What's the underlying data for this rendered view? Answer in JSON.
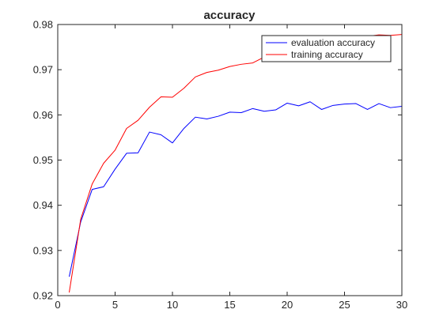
{
  "chart_data": {
    "type": "line",
    "title": "accuracy",
    "xlabel": "",
    "ylabel": "",
    "xlim": [
      0,
      30
    ],
    "ylim": [
      0.92,
      0.98
    ],
    "xticks": [
      0,
      5,
      10,
      15,
      20,
      25,
      30
    ],
    "xtick_labels": [
      "0",
      "5",
      "10",
      "15",
      "20",
      "25",
      "30"
    ],
    "yticks": [
      0.92,
      0.93,
      0.94,
      0.95,
      0.96,
      0.97,
      0.98
    ],
    "ytick_labels": [
      "0.92",
      "0.93",
      "0.94",
      "0.95",
      "0.96",
      "0.97",
      "0.98"
    ],
    "grid": false,
    "legend_position": "top-right",
    "x": [
      1,
      2,
      3,
      4,
      5,
      6,
      7,
      8,
      9,
      10,
      11,
      12,
      13,
      14,
      15,
      16,
      17,
      18,
      19,
      20,
      21,
      22,
      23,
      24,
      25,
      26,
      27,
      28,
      29,
      30
    ],
    "series": [
      {
        "name": "evaluation accuracy",
        "color": "#0000ff",
        "values": [
          0.9242,
          0.9363,
          0.9435,
          0.9441,
          0.948,
          0.9515,
          0.9516,
          0.9562,
          0.9556,
          0.9538,
          0.957,
          0.9595,
          0.9591,
          0.9597,
          0.9606,
          0.9605,
          0.9614,
          0.9608,
          0.9611,
          0.9626,
          0.962,
          0.9629,
          0.9612,
          0.9621,
          0.9624,
          0.9625,
          0.9612,
          0.9625,
          0.9616,
          0.9619
        ]
      },
      {
        "name": "training accuracy",
        "color": "#ff0000",
        "values": [
          0.9207,
          0.9369,
          0.9447,
          0.9493,
          0.9522,
          0.957,
          0.9588,
          0.9617,
          0.964,
          0.9639,
          0.9659,
          0.9684,
          0.9694,
          0.9699,
          0.9707,
          0.9712,
          0.9715,
          0.9728,
          0.9735,
          0.9743,
          0.9748,
          0.9755,
          0.9759,
          0.9763,
          0.9767,
          0.9771,
          0.9774,
          0.9777,
          0.9776,
          0.9778
        ]
      }
    ]
  }
}
